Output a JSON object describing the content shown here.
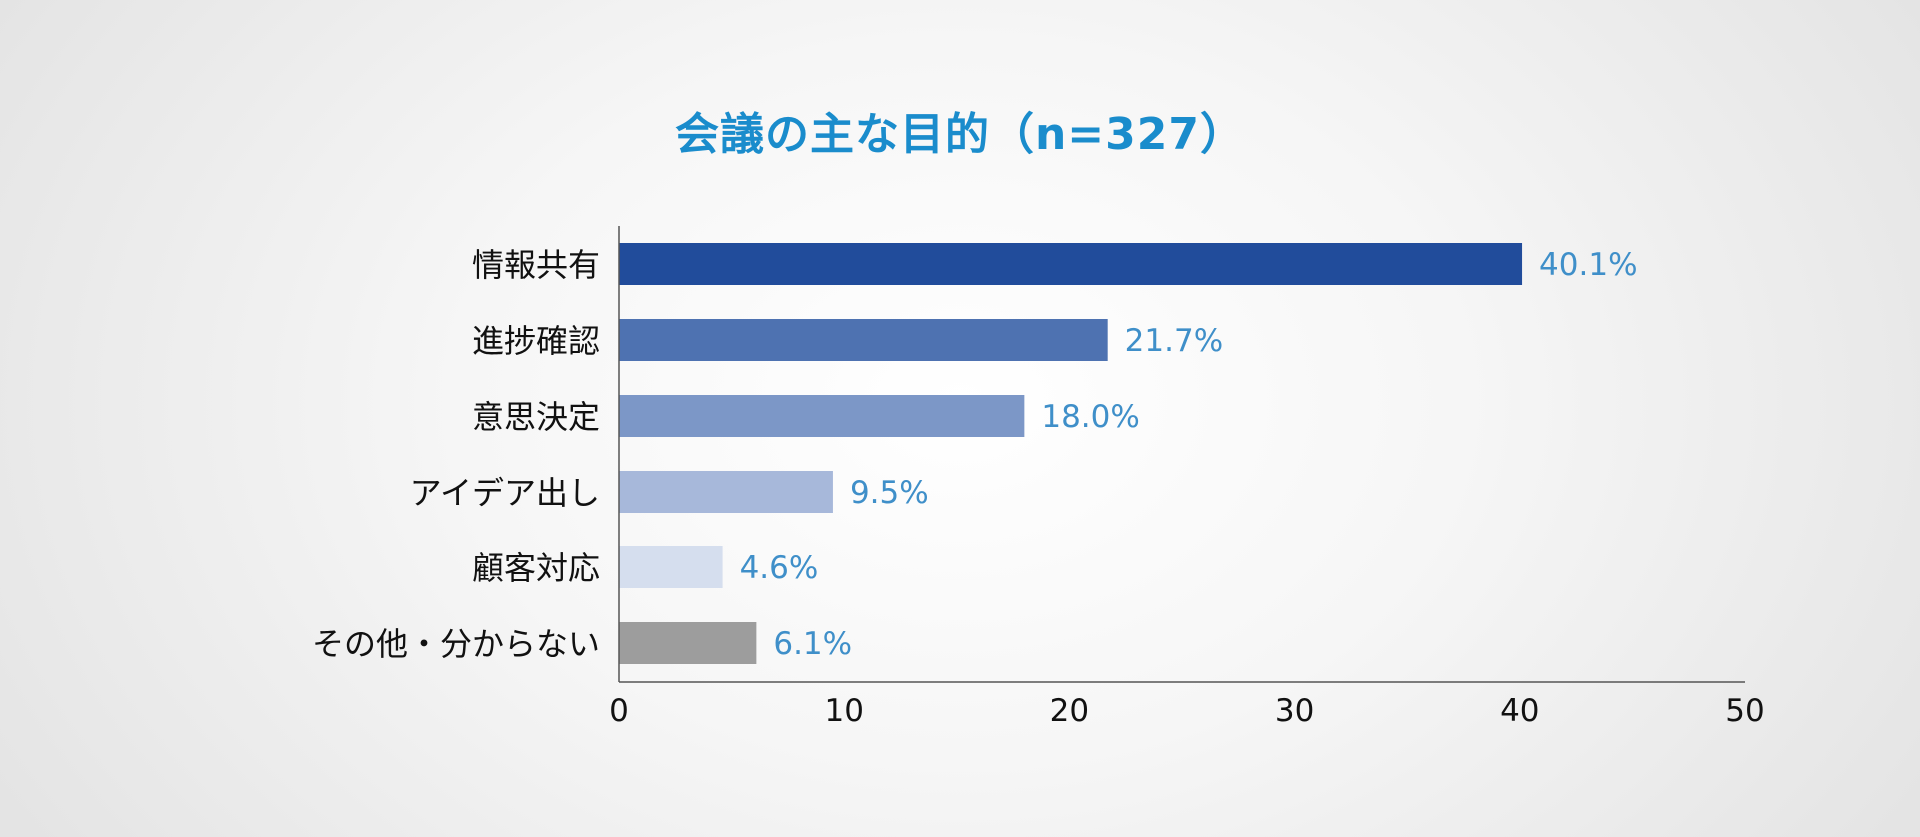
{
  "colors": {
    "title": "#1a8ccc",
    "value_label": "#3f8fc9",
    "axis_line": "#555555",
    "category_label": "#111111",
    "bars": [
      "#214c9b",
      "#4e72b1",
      "#7c97c7",
      "#a7b8da",
      "#d5deee",
      "#9d9d9d"
    ]
  },
  "chart_data": {
    "type": "bar",
    "orientation": "horizontal",
    "title": "会議の主な目的（n=327）",
    "categories": [
      "情報共有",
      "進捗確認",
      "意思決定",
      "アイデア出し",
      "顧客対応",
      "その他・分からない"
    ],
    "values": [
      40.1,
      21.7,
      18.0,
      9.5,
      4.6,
      6.1
    ],
    "value_labels": [
      "40.1%",
      "21.7%",
      "18.0%",
      "9.5%",
      "4.6%",
      "6.1%"
    ],
    "xlim": [
      0,
      50
    ],
    "xticks": [
      0,
      10,
      20,
      30,
      40,
      50
    ],
    "xtick_labels": [
      "0",
      "10",
      "20",
      "30",
      "40",
      "50"
    ],
    "xlabel": "",
    "ylabel": "",
    "grid": false,
    "legend": "none"
  }
}
